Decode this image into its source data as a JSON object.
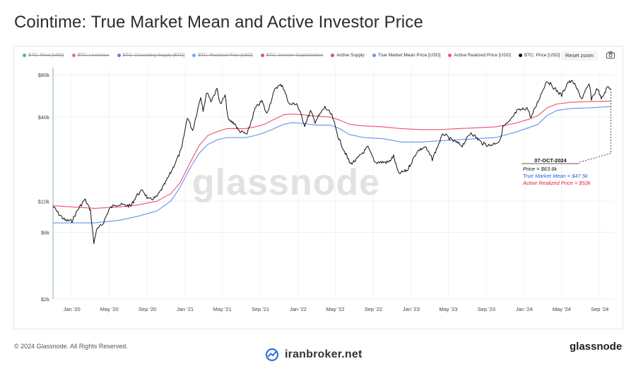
{
  "title": "Cointime: True Market Mean and Active Investor Price",
  "legend": [
    {
      "label": "BTC: Price [USD]",
      "color": "#54b58a",
      "state": "off"
    },
    {
      "label": "BTC: Liveliness",
      "color": "#e37474",
      "state": "off"
    },
    {
      "label": "BTC: Circulating Supply [BTC]",
      "color": "#7b74e0",
      "state": "off"
    },
    {
      "label": "BTC: Realized Price [USD]",
      "color": "#7da6e8",
      "state": "off"
    },
    {
      "label": "BTC: Investor Capitalization",
      "color": "#e05a5a",
      "state": "off"
    },
    {
      "label": "Active Supply",
      "color": "#e05050",
      "state": "on"
    },
    {
      "label": "True Market Mean Price [USD]",
      "color": "#6b8ff0",
      "state": "on"
    },
    {
      "label": "Active Realized Price [USD]",
      "color": "#f0506a",
      "state": "on"
    },
    {
      "label": "BTC: Price [USD]",
      "color": "#111111",
      "state": "on"
    }
  ],
  "reset_zoom_label": "Reset zoom",
  "watermark_center": "glassnode",
  "annotation": {
    "date": "07-OCT-2024",
    "price": "Price = $63.6k",
    "true_market_mean": "True Market Mean = $47.5k",
    "active_realized": "Active Realized Price = $52k"
  },
  "footer": {
    "copyright": "© 2024 Glassnode. All Rights Reserved.",
    "brand": "glassnode",
    "watermark": "iranbroker.net"
  },
  "chart_data": {
    "type": "line",
    "title": "Cointime: True Market Mean and Active Investor Price",
    "xlabel": "",
    "ylabel": "",
    "yscale": "log",
    "ylim": [
      2000,
      90000
    ],
    "xlim": [
      "2019-11-01",
      "2024-10-15"
    ],
    "y_ticks": [
      {
        "value": 80000,
        "label": "$80k"
      },
      {
        "value": 40000,
        "label": "$40k"
      },
      {
        "value": 10000,
        "label": "$10k"
      },
      {
        "value": 6000,
        "label": "$6k"
      },
      {
        "value": 2000,
        "label": "$2k"
      }
    ],
    "x_ticks": [
      {
        "date": "2020-01-01",
        "label": "Jan '20"
      },
      {
        "date": "2020-05-01",
        "label": "May '20"
      },
      {
        "date": "2020-09-01",
        "label": "Sep '20"
      },
      {
        "date": "2021-01-01",
        "label": "Jan '21"
      },
      {
        "date": "2021-05-01",
        "label": "May '21"
      },
      {
        "date": "2021-09-01",
        "label": "Sep '21"
      },
      {
        "date": "2022-01-01",
        "label": "Jan '22"
      },
      {
        "date": "2022-05-01",
        "label": "May '22"
      },
      {
        "date": "2022-09-01",
        "label": "Sep '22"
      },
      {
        "date": "2023-01-01",
        "label": "Jan '23"
      },
      {
        "date": "2023-05-01",
        "label": "May '23"
      },
      {
        "date": "2023-09-01",
        "label": "Sep '23"
      },
      {
        "date": "2024-01-01",
        "label": "Jan '24"
      },
      {
        "date": "2024-05-01",
        "label": "May '24"
      },
      {
        "date": "2024-09-01",
        "label": "Sep '24"
      }
    ],
    "grid": true,
    "series": [
      {
        "name": "BTC: Price [USD]",
        "color": "#111111",
        "points": [
          [
            "2019-11-01",
            9200
          ],
          [
            "2019-11-20",
            8100
          ],
          [
            "2019-12-10",
            7300
          ],
          [
            "2020-01-01",
            7200
          ],
          [
            "2020-01-20",
            8700
          ],
          [
            "2020-02-12",
            10300
          ],
          [
            "2020-03-01",
            8600
          ],
          [
            "2020-03-12",
            5000
          ],
          [
            "2020-03-20",
            6200
          ],
          [
            "2020-04-10",
            6900
          ],
          [
            "2020-05-01",
            8800
          ],
          [
            "2020-05-20",
            9500
          ],
          [
            "2020-06-15",
            9400
          ],
          [
            "2020-07-10",
            9250
          ],
          [
            "2020-07-28",
            11000
          ],
          [
            "2020-08-17",
            12000
          ],
          [
            "2020-09-05",
            10200
          ],
          [
            "2020-10-01",
            10700
          ],
          [
            "2020-10-25",
            13000
          ],
          [
            "2020-11-15",
            16000
          ],
          [
            "2020-12-01",
            19000
          ],
          [
            "2020-12-20",
            23500
          ],
          [
            "2021-01-08",
            40000
          ],
          [
            "2021-01-25",
            32000
          ],
          [
            "2021-02-20",
            56000
          ],
          [
            "2021-02-28",
            45000
          ],
          [
            "2021-03-13",
            61000
          ],
          [
            "2021-03-25",
            52000
          ],
          [
            "2021-04-14",
            63500
          ],
          [
            "2021-04-25",
            49000
          ],
          [
            "2021-05-10",
            57000
          ],
          [
            "2021-05-20",
            38000
          ],
          [
            "2021-06-10",
            36000
          ],
          [
            "2021-06-22",
            32000
          ],
          [
            "2021-07-20",
            30000
          ],
          [
            "2021-08-15",
            46000
          ],
          [
            "2021-09-06",
            52000
          ],
          [
            "2021-09-21",
            42000
          ],
          [
            "2021-10-20",
            65000
          ],
          [
            "2021-11-10",
            68000
          ],
          [
            "2021-12-04",
            49000
          ],
          [
            "2021-12-27",
            50000
          ],
          [
            "2022-01-22",
            35000
          ],
          [
            "2022-02-10",
            44000
          ],
          [
            "2022-02-24",
            37000
          ],
          [
            "2022-03-28",
            47000
          ],
          [
            "2022-04-20",
            41000
          ],
          [
            "2022-05-12",
            28000
          ],
          [
            "2022-06-18",
            18500
          ],
          [
            "2022-07-05",
            19500
          ],
          [
            "2022-08-14",
            24300
          ],
          [
            "2022-09-06",
            19000
          ],
          [
            "2022-10-20",
            19000
          ],
          [
            "2022-11-05",
            21000
          ],
          [
            "2022-11-21",
            15700
          ],
          [
            "2022-12-20",
            16700
          ],
          [
            "2023-01-20",
            22700
          ],
          [
            "2023-02-15",
            24500
          ],
          [
            "2023-03-10",
            20000
          ],
          [
            "2023-04-14",
            30400
          ],
          [
            "2023-05-10",
            27500
          ],
          [
            "2023-06-15",
            25000
          ],
          [
            "2023-07-13",
            31000
          ],
          [
            "2023-08-18",
            26000
          ],
          [
            "2023-09-11",
            25000
          ],
          [
            "2023-10-15",
            27000
          ],
          [
            "2023-10-24",
            34000
          ],
          [
            "2023-11-15",
            37000
          ],
          [
            "2023-12-08",
            44000
          ],
          [
            "2024-01-11",
            46500
          ],
          [
            "2024-01-23",
            39500
          ],
          [
            "2024-02-15",
            52000
          ],
          [
            "2024-03-14",
            73000
          ],
          [
            "2024-04-17",
            61000
          ],
          [
            "2024-05-01",
            57000
          ],
          [
            "2024-05-21",
            71000
          ],
          [
            "2024-06-07",
            71500
          ],
          [
            "2024-07-05",
            54000
          ],
          [
            "2024-07-29",
            69000
          ],
          [
            "2024-08-05",
            54000
          ],
          [
            "2024-08-25",
            64000
          ],
          [
            "2024-09-06",
            53500
          ],
          [
            "2024-09-27",
            66000
          ],
          [
            "2024-10-07",
            63600
          ]
        ]
      },
      {
        "name": "True Market Mean Price [USD]",
        "color": "#6b8ff0",
        "points": [
          [
            "2019-11-01",
            7000
          ],
          [
            "2020-01-01",
            7000
          ],
          [
            "2020-03-15",
            7000
          ],
          [
            "2020-06-01",
            7300
          ],
          [
            "2020-08-01",
            7800
          ],
          [
            "2020-10-01",
            8500
          ],
          [
            "2020-11-15",
            10000
          ],
          [
            "2020-12-15",
            12500
          ],
          [
            "2021-01-15",
            17000
          ],
          [
            "2021-02-15",
            22000
          ],
          [
            "2021-03-15",
            25500
          ],
          [
            "2021-04-15",
            27500
          ],
          [
            "2021-05-15",
            28500
          ],
          [
            "2021-06-15",
            28500
          ],
          [
            "2021-07-15",
            28500
          ],
          [
            "2021-08-15",
            29500
          ],
          [
            "2021-09-15",
            31000
          ],
          [
            "2021-10-15",
            33000
          ],
          [
            "2021-11-15",
            35500
          ],
          [
            "2021-12-15",
            36500
          ],
          [
            "2022-01-15",
            36000
          ],
          [
            "2022-03-01",
            35000
          ],
          [
            "2022-04-15",
            35000
          ],
          [
            "2022-05-15",
            33000
          ],
          [
            "2022-06-15",
            30000
          ],
          [
            "2022-08-01",
            28500
          ],
          [
            "2022-10-01",
            28000
          ],
          [
            "2022-12-01",
            26500
          ],
          [
            "2023-02-01",
            26500
          ],
          [
            "2023-04-01",
            27000
          ],
          [
            "2023-06-01",
            27500
          ],
          [
            "2023-08-01",
            28000
          ],
          [
            "2023-10-01",
            28500
          ],
          [
            "2023-12-01",
            31000
          ],
          [
            "2024-01-15",
            33500
          ],
          [
            "2024-02-15",
            35500
          ],
          [
            "2024-03-15",
            41000
          ],
          [
            "2024-04-15",
            44500
          ],
          [
            "2024-06-01",
            46000
          ],
          [
            "2024-08-01",
            46500
          ],
          [
            "2024-10-07",
            47500
          ]
        ]
      },
      {
        "name": "Active Realized Price [USD]",
        "color": "#f0506a",
        "points": [
          [
            "2019-11-01",
            9300
          ],
          [
            "2020-01-01",
            9100
          ],
          [
            "2020-03-15",
            8900
          ],
          [
            "2020-06-01",
            9100
          ],
          [
            "2020-08-01",
            9400
          ],
          [
            "2020-10-01",
            10000
          ],
          [
            "2020-11-15",
            11300
          ],
          [
            "2020-12-15",
            13500
          ],
          [
            "2021-01-15",
            18500
          ],
          [
            "2021-02-15",
            25000
          ],
          [
            "2021-03-15",
            29500
          ],
          [
            "2021-04-15",
            31500
          ],
          [
            "2021-05-15",
            33000
          ],
          [
            "2021-06-15",
            33000
          ],
          [
            "2021-07-15",
            33000
          ],
          [
            "2021-08-15",
            34000
          ],
          [
            "2021-09-15",
            35500
          ],
          [
            "2021-10-15",
            38500
          ],
          [
            "2021-11-15",
            41500
          ],
          [
            "2021-12-15",
            42000
          ],
          [
            "2022-01-15",
            41500
          ],
          [
            "2022-03-01",
            40500
          ],
          [
            "2022-04-15",
            40000
          ],
          [
            "2022-05-15",
            38000
          ],
          [
            "2022-06-15",
            35500
          ],
          [
            "2022-08-01",
            34500
          ],
          [
            "2022-10-01",
            34000
          ],
          [
            "2022-12-01",
            33000
          ],
          [
            "2023-02-01",
            32500
          ],
          [
            "2023-04-01",
            32500
          ],
          [
            "2023-06-01",
            33000
          ],
          [
            "2023-08-01",
            33500
          ],
          [
            "2023-10-01",
            34000
          ],
          [
            "2023-12-01",
            36000
          ],
          [
            "2024-01-15",
            38500
          ],
          [
            "2024-02-15",
            41000
          ],
          [
            "2024-03-15",
            46500
          ],
          [
            "2024-04-15",
            49500
          ],
          [
            "2024-06-01",
            51000
          ],
          [
            "2024-08-01",
            51500
          ],
          [
            "2024-10-07",
            52000
          ]
        ]
      }
    ]
  }
}
